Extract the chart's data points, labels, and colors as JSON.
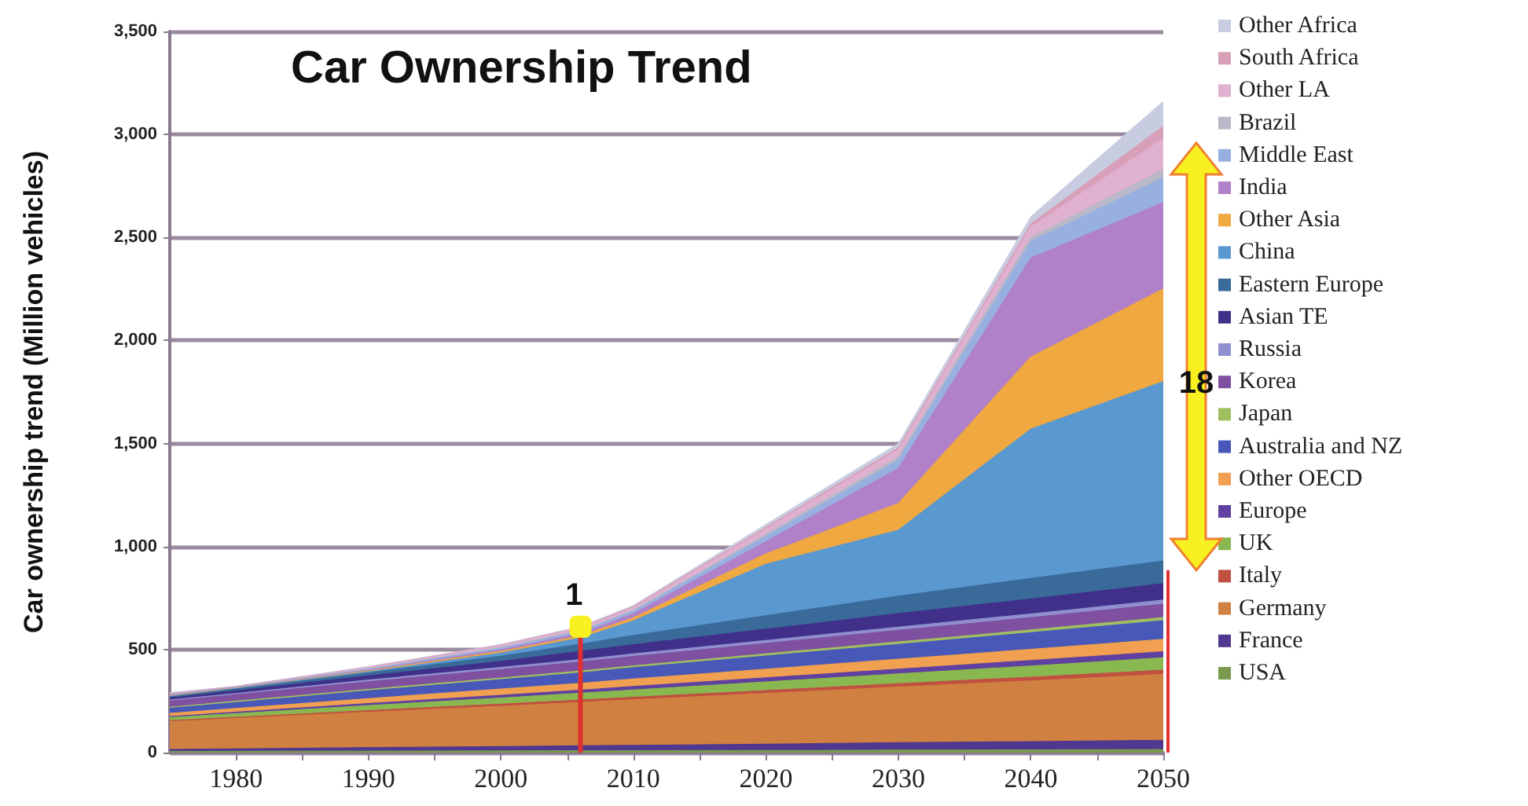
{
  "chart_data": {
    "type": "area",
    "stacked": true,
    "title": "Car Ownership Trend",
    "ylabel": "Car ownership trend (Million vehicles)",
    "x": [
      1975,
      1980,
      1990,
      2000,
      2006,
      2010,
      2020,
      2030,
      2040,
      2050
    ],
    "xlim": [
      1975,
      2050
    ],
    "xticks": [
      1980,
      {
        "value": 1985,
        "label": null
      },
      1990,
      {
        "value": 1995,
        "label": null
      },
      2000,
      {
        "value": 2005,
        "label": null
      },
      2010,
      {
        "value": 2015,
        "label": null
      },
      2020,
      {
        "value": 2025,
        "label": null
      },
      2030,
      {
        "value": 2035,
        "label": null
      },
      2040,
      {
        "value": 2045,
        "label": null
      },
      2050
    ],
    "ylim": [
      0,
      3500
    ],
    "yticks": [
      0,
      500,
      {
        "value": 1000,
        "label": "1,000"
      },
      {
        "value": 1500,
        "label": "1,500"
      },
      {
        "value": 2000,
        "label": "2,000"
      },
      {
        "value": 2500,
        "label": "2,500"
      },
      {
        "value": 3000,
        "label": "3,000"
      },
      {
        "value": 3500,
        "label": "3,500"
      }
    ],
    "grid": "y",
    "legend": "right",
    "marker": "none",
    "series": [
      {
        "name": "USA",
        "color": "#7a9a50",
        "values": [
          5,
          6,
          7,
          8,
          9,
          9,
          10,
          12,
          13,
          15
        ]
      },
      {
        "name": "France",
        "color": "#503890",
        "values": [
          10,
          12,
          17,
          21,
          24,
          26,
          31,
          36,
          40,
          45
        ]
      },
      {
        "name": "Germany",
        "color": "#d08040",
        "values": [
          135,
          147,
          172,
          196,
          211,
          221,
          246,
          270,
          295,
          320
        ]
      },
      {
        "name": "Italy",
        "color": "#c05040",
        "values": [
          5,
          6,
          8,
          10,
          11,
          12,
          14,
          16,
          18,
          20
        ]
      },
      {
        "name": "UK",
        "color": "#8ab850",
        "values": [
          15,
          18,
          24,
          30,
          33,
          36,
          42,
          48,
          54,
          60
        ]
      },
      {
        "name": "Europe",
        "color": "#6040a0",
        "values": [
          5,
          7,
          10,
          13,
          15,
          17,
          20,
          23,
          27,
          30
        ]
      },
      {
        "name": "Other OECD",
        "color": "#f0a050",
        "values": [
          15,
          18,
          24,
          30,
          33,
          36,
          42,
          48,
          54,
          60
        ]
      },
      {
        "name": "Australia and NZ",
        "color": "#4858b8",
        "values": [
          25,
          29,
          38,
          46,
          51,
          55,
          64,
          72,
          81,
          90
        ]
      },
      {
        "name": "Japan",
        "color": "#a0c060",
        "values": [
          5,
          6,
          7,
          8,
          9,
          9,
          10,
          12,
          13,
          15
        ]
      },
      {
        "name": "Korea",
        "color": "#8050a0",
        "values": [
          30,
          32,
          37,
          41,
          44,
          46,
          51,
          56,
          60,
          65
        ]
      },
      {
        "name": "Russia",
        "color": "#9090d0",
        "values": [
          5,
          6,
          8,
          10,
          11,
          12,
          14,
          16,
          18,
          20
        ]
      },
      {
        "name": "Asian TE",
        "color": "#40308a",
        "values": [
          10,
          13,
          20,
          30,
          40,
          45,
          55,
          65,
          72,
          80
        ]
      },
      {
        "name": "Eastern Europe",
        "color": "#3a6a9a",
        "values": [
          5,
          8,
          15,
          25,
          35,
          45,
          65,
          85,
          100,
          110
        ]
      },
      {
        "name": "China",
        "color": "#5a98d0",
        "values": [
          2,
          3,
          5,
          15,
          30,
          70,
          250,
          320,
          725,
          870
        ]
      },
      {
        "name": "Other Asia",
        "color": "#f0a840",
        "values": [
          3,
          2,
          4,
          8,
          10,
          15,
          50,
          130,
          350,
          450
        ]
      },
      {
        "name": "India",
        "color": "#b080c8",
        "values": [
          3,
          2,
          4,
          8,
          12,
          20,
          60,
          170,
          480,
          420
        ]
      },
      {
        "name": "Middle East",
        "color": "#98b0e0",
        "values": [
          4,
          2,
          5,
          8,
          10,
          12,
          25,
          40,
          80,
          120
        ]
      },
      {
        "name": "Brazil",
        "color": "#b8b8c8",
        "values": [
          2,
          1,
          3,
          4,
          5,
          6,
          10,
          15,
          20,
          40
        ]
      },
      {
        "name": "Other LA",
        "color": "#e0b0d0",
        "values": [
          3,
          2,
          5,
          8,
          10,
          12,
          25,
          35,
          50,
          150
        ]
      },
      {
        "name": "South Africa",
        "color": "#d8a0b8",
        "values": [
          1,
          1,
          2,
          3,
          4,
          5,
          8,
          10,
          15,
          60
        ]
      },
      {
        "name": "Other Africa",
        "color": "#c8cce0",
        "values": [
          2,
          1,
          2,
          3,
          4,
          5,
          15,
          20,
          35,
          120
        ]
      }
    ],
    "annotations": [
      {
        "text": "1",
        "x": 2006,
        "y": 611
      },
      {
        "text": "18",
        "x": 2050,
        "y": 1800
      }
    ]
  }
}
